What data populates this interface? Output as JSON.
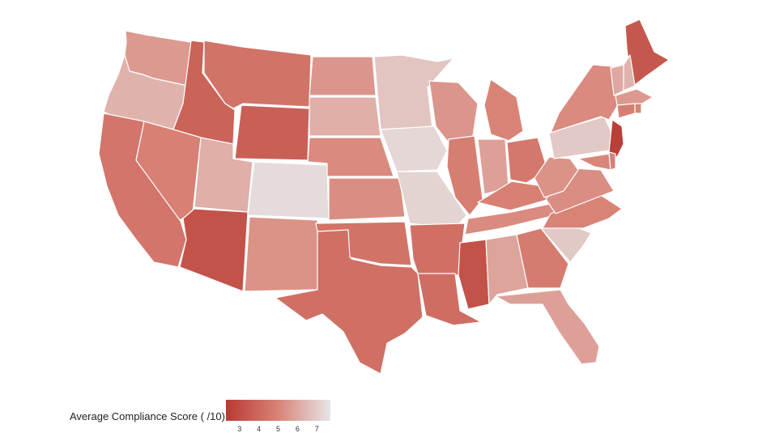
{
  "legend": {
    "title": "Average Compliance Score ( /10)",
    "min": 2.3,
    "max": 7.7,
    "ticks": [
      "3",
      "4",
      "5",
      "6",
      "7"
    ],
    "colors": {
      "low": "#b83a32",
      "high": "#e6e6e6"
    }
  },
  "states": [
    {
      "id": "WA",
      "score": 5.6
    },
    {
      "id": "OR",
      "score": 6.3
    },
    {
      "id": "CA",
      "score": 4.5
    },
    {
      "id": "ID",
      "score": 3.8
    },
    {
      "id": "NV",
      "score": 4.9
    },
    {
      "id": "UT",
      "score": 6.2
    },
    {
      "id": "AZ",
      "score": 3.2
    },
    {
      "id": "MT",
      "score": 4.4
    },
    {
      "id": "WY",
      "score": 3.7
    },
    {
      "id": "CO",
      "score": 7.4
    },
    {
      "id": "NM",
      "score": 5.4
    },
    {
      "id": "TX",
      "score": 4.3
    },
    {
      "id": "ND",
      "score": 5.5
    },
    {
      "id": "SD",
      "score": 6.2
    },
    {
      "id": "NE",
      "score": 5.2
    },
    {
      "id": "KS",
      "score": 5.3
    },
    {
      "id": "OK",
      "score": 4.4
    },
    {
      "id": "MN",
      "score": 6.8
    },
    {
      "id": "IA",
      "score": 7.3
    },
    {
      "id": "MO",
      "score": 7.2
    },
    {
      "id": "AR",
      "score": 4.3
    },
    {
      "id": "LA",
      "score": 4.2
    },
    {
      "id": "WI",
      "score": 5.5
    },
    {
      "id": "IL",
      "score": 4.8
    },
    {
      "id": "MI",
      "score": 5.0
    },
    {
      "id": "IN",
      "score": 5.8
    },
    {
      "id": "OH",
      "score": 4.6
    },
    {
      "id": "KY",
      "score": 4.9
    },
    {
      "id": "TN",
      "score": 5.2
    },
    {
      "id": "MS",
      "score": 3.2
    },
    {
      "id": "AL",
      "score": 5.9
    },
    {
      "id": "GA",
      "score": 4.7
    },
    {
      "id": "FL",
      "score": 5.8
    },
    {
      "id": "SC",
      "score": 6.9
    },
    {
      "id": "NC",
      "score": 5.0
    },
    {
      "id": "VA",
      "score": 5.3
    },
    {
      "id": "WV",
      "score": 5.4
    },
    {
      "id": "PA",
      "score": 6.9
    },
    {
      "id": "NY",
      "score": 5.2
    },
    {
      "id": "ME",
      "score": 3.4
    },
    {
      "id": "NJ",
      "score": 2.5
    },
    {
      "id": "VT",
      "score": 6.0
    },
    {
      "id": "NH",
      "score": 6.3
    },
    {
      "id": "MA",
      "score": 5.6
    },
    {
      "id": "CT",
      "score": 4.8
    },
    {
      "id": "RI",
      "score": 5.0
    },
    {
      "id": "MD",
      "score": 5.1
    },
    {
      "id": "DE",
      "score": 4.9
    }
  ]
}
